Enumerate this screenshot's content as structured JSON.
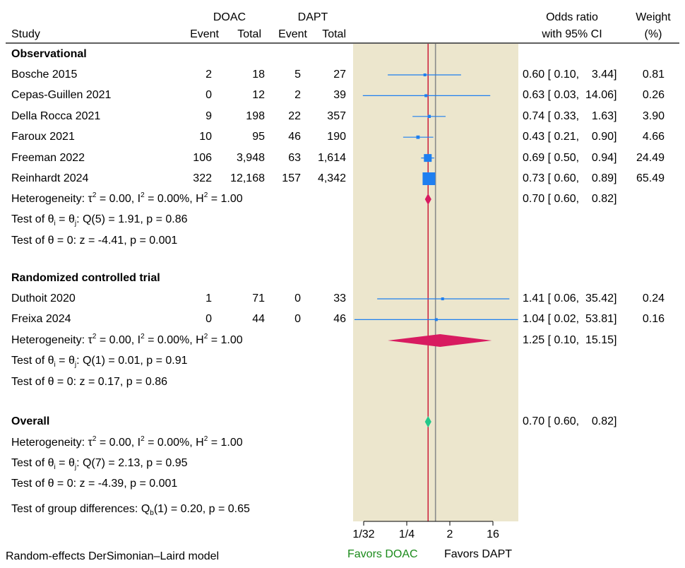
{
  "header": {
    "study": "Study",
    "groups": [
      "DOAC",
      "DAPT"
    ],
    "event": "Event",
    "total": "Total",
    "or_line1": "Odds ratio",
    "or_line2": "with 95% CI",
    "weight_line1": "Weight",
    "weight_line2": "(%)"
  },
  "footer": {
    "model": "Random-effects DerSimonian–Laird model",
    "favors_left": "Favors DOAC",
    "favors_right": "Favors DAPT"
  },
  "colors": {
    "panel_bg": "#ece6cd",
    "study_marker": "#1e7ff0",
    "subgroup_diamond": "#d81b60",
    "overall_diamond": "#22c88a",
    "null_line": "#8a8a8a",
    "pooled_line": "#c8102e",
    "favors_doac": "#1a8a1a"
  },
  "chart_data": {
    "type": "forest",
    "scale": "log2",
    "x_ticks": [
      {
        "label": "1/32",
        "value": 0.03125
      },
      {
        "label": "1/4",
        "value": 0.25
      },
      {
        "label": "2",
        "value": 2
      },
      {
        "label": "16",
        "value": 16
      }
    ],
    "null_value": 1,
    "pooled_line_value": 0.7,
    "subgroups": [
      {
        "name": "Observational",
        "studies": [
          {
            "study": "Bosche 2015",
            "doac_event": "2",
            "doac_total": "18",
            "dapt_event": "5",
            "dapt_total": "27",
            "or": 0.6,
            "lo": 0.1,
            "hi": 3.44,
            "ci_text": "0.60 [ 0.10,    3.44]",
            "weight": "0.81"
          },
          {
            "study": "Cepas-Guillen 2021",
            "doac_event": "0",
            "doac_total": "12",
            "dapt_event": "2",
            "dapt_total": "39",
            "or": 0.63,
            "lo": 0.03,
            "hi": 14.06,
            "ci_text": "0.63 [ 0.03,  14.06]",
            "weight": "0.26"
          },
          {
            "study": "Della Rocca 2021",
            "doac_event": "9",
            "doac_total": "198",
            "dapt_event": "22",
            "dapt_total": "357",
            "or": 0.74,
            "lo": 0.33,
            "hi": 1.63,
            "ci_text": "0.74 [ 0.33,    1.63]",
            "weight": "3.90"
          },
          {
            "study": "Faroux 2021",
            "doac_event": "10",
            "doac_total": "95",
            "dapt_event": "46",
            "dapt_total": "190",
            "or": 0.43,
            "lo": 0.21,
            "hi": 0.9,
            "ci_text": "0.43 [ 0.21,    0.90]",
            "weight": "4.66"
          },
          {
            "study": "Freeman 2022",
            "doac_event": "106",
            "doac_total": "3,948",
            "dapt_event": "63",
            "dapt_total": "1,614",
            "or": 0.69,
            "lo": 0.5,
            "hi": 0.94,
            "ci_text": "0.69 [ 0.50,    0.94]",
            "weight": "24.49"
          },
          {
            "study": "Reinhardt 2024",
            "doac_event": "322",
            "doac_total": "12,168",
            "dapt_event": "157",
            "dapt_total": "4,342",
            "or": 0.73,
            "lo": 0.6,
            "hi": 0.89,
            "ci_text": "0.73 [ 0.60,    0.89]",
            "weight": "65.49"
          }
        ],
        "pooled": {
          "or": 0.7,
          "lo": 0.6,
          "hi": 0.82,
          "ci_text": "0.70 [ 0.60,    0.82]"
        },
        "heterogeneity": {
          "tau2": "0.00",
          "i2": "0.00%",
          "h2": "1.00"
        },
        "q_test": {
          "df": "5",
          "q": "1.91",
          "p": "0.86"
        },
        "z_test": {
          "z": "-4.41",
          "p": "0.001"
        }
      },
      {
        "name": "Randomized controlled trial",
        "studies": [
          {
            "study": "Duthoit 2020",
            "doac_event": "1",
            "doac_total": "71",
            "dapt_event": "0",
            "dapt_total": "33",
            "or": 1.41,
            "lo": 0.06,
            "hi": 35.42,
            "ci_text": "1.41 [ 0.06,  35.42]",
            "weight": "0.24"
          },
          {
            "study": "Freixa 2024",
            "doac_event": "0",
            "doac_total": "44",
            "dapt_event": "0",
            "dapt_total": "46",
            "or": 1.04,
            "lo": 0.02,
            "hi": 53.81,
            "ci_text": "1.04 [ 0.02,  53.81]",
            "weight": "0.16"
          }
        ],
        "pooled": {
          "or": 1.25,
          "lo": 0.1,
          "hi": 15.15,
          "ci_text": "1.25 [ 0.10,  15.15]"
        },
        "heterogeneity": {
          "tau2": "0.00",
          "i2": "0.00%",
          "h2": "1.00"
        },
        "q_test": {
          "df": "1",
          "q": "0.01",
          "p": "0.91"
        },
        "z_test": {
          "z": "0.17",
          "p": "0.86"
        }
      }
    ],
    "overall": {
      "label": "Overall",
      "or": 0.7,
      "lo": 0.6,
      "hi": 0.82,
      "ci_text": "0.70 [ 0.60,    0.82]",
      "heterogeneity": {
        "tau2": "0.00",
        "i2": "0.00%",
        "h2": "1.00"
      },
      "q_test": {
        "df": "7",
        "q": "2.13",
        "p": "0.95"
      },
      "z_test": {
        "z": "-4.39",
        "p": "0.001"
      }
    },
    "group_differences": {
      "df": "1",
      "q": "0.20",
      "p": "0.65"
    }
  }
}
